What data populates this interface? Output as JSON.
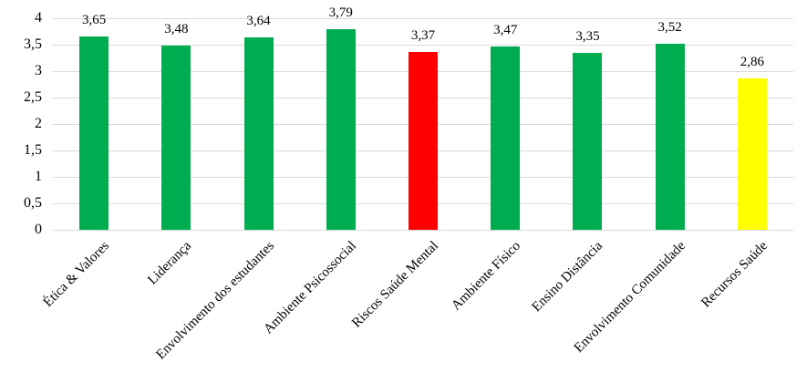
{
  "chart_data": {
    "type": "bar",
    "title": "",
    "xlabel": "",
    "ylabel": "",
    "categories": [
      "Ética & Valores",
      "Liderança",
      "Envolvimento dos estudantes",
      "Ambiente Psicossocial",
      "Riscos Saúde Mental",
      "Ambiente Físico",
      "Ensino Distância",
      "Envolvimento Comunidade",
      "Recursos Saúde"
    ],
    "values": [
      3.65,
      3.48,
      3.64,
      3.79,
      3.37,
      3.47,
      3.35,
      3.52,
      2.86
    ],
    "value_labels": [
      "3,65",
      "3,48",
      "3,64",
      "3,79",
      "3,37",
      "3,47",
      "3,35",
      "3,52",
      "2,86"
    ],
    "bar_colors": [
      "#00AC50",
      "#00AC50",
      "#00AC50",
      "#00AC50",
      "#FF0000",
      "#00AC50",
      "#00AC50",
      "#00AC50",
      "#FFFF00"
    ],
    "ylim": [
      0,
      4
    ],
    "yticks": [
      0,
      0.5,
      1,
      1.5,
      2,
      2.5,
      3,
      3.5,
      4
    ],
    "ytick_labels": [
      "0",
      "0,5",
      "1",
      "1,5",
      "2",
      "2,5",
      "3",
      "3,5",
      "4"
    ],
    "grid": true,
    "gridline_color": "#D9D9D9",
    "text_color": "#000000",
    "background_color": "#FFFFFF",
    "legend_position": "none",
    "accent_colors": {
      "green": "#00AC50",
      "red": "#FF0000",
      "yellow": "#FFFF00"
    }
  }
}
